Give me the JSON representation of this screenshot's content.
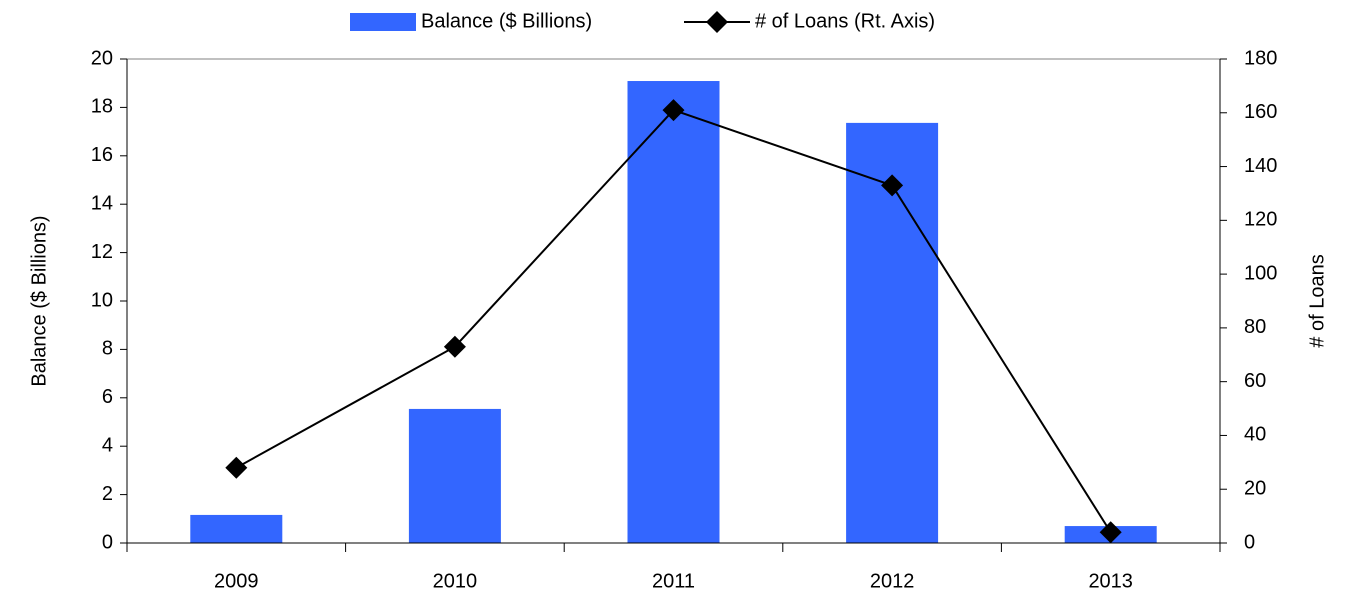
{
  "chart_data": {
    "type": "bar-line",
    "categories": [
      "2009",
      "2010",
      "2011",
      "2012",
      "2013"
    ],
    "series": [
      {
        "name": "Balance ($ Billions)",
        "type": "bar",
        "color": "#3366ff",
        "values": [
          1.16,
          5.54,
          19.09,
          17.36,
          0.7
        ]
      },
      {
        "name": "# of Loans (Rt. Axis)",
        "type": "line",
        "axis": "y2",
        "color": "#000000",
        "marker": "diamond",
        "values": [
          28,
          73,
          161,
          133,
          4
        ]
      }
    ],
    "y_label": "Balance ($ Billions)",
    "y2_label": "# of Loans",
    "ylim": [
      0,
      20
    ],
    "yticks": [
      0,
      2,
      4,
      6,
      8,
      10,
      12,
      14,
      16,
      18,
      20
    ],
    "y2lim": [
      0,
      180
    ],
    "y2ticks": [
      0,
      20,
      40,
      60,
      80,
      100,
      120,
      140,
      160,
      180
    ],
    "legend": "top",
    "grid": false
  }
}
